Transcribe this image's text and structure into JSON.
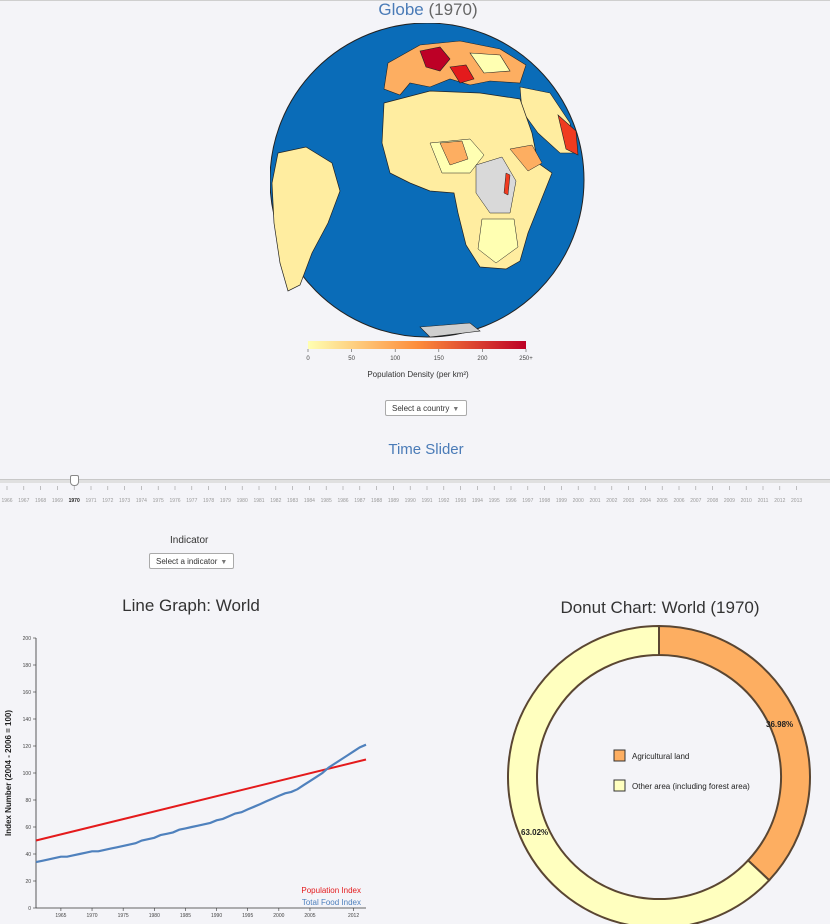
{
  "globe": {
    "title_main": "Globe",
    "title_year": "(1970)",
    "legend": {
      "ticks": [
        "0",
        "50",
        "100",
        "150",
        "200",
        "250+"
      ],
      "label": "Population Density (per km²)",
      "color_low": "#ffffb2",
      "color_mid": "#fd8d3c",
      "color_high": "#bd0026"
    },
    "ocean_color": "#0a6cb8",
    "country_select": "Select a country"
  },
  "slider": {
    "title": "Time Slider",
    "selected_year": "1970",
    "years": [
      "1966",
      "1967",
      "1968",
      "1969",
      "1970",
      "1971",
      "1972",
      "1973",
      "1974",
      "1975",
      "1976",
      "1977",
      "1978",
      "1979",
      "1980",
      "1981",
      "1982",
      "1983",
      "1984",
      "1985",
      "1986",
      "1987",
      "1988",
      "1989",
      "1990",
      "1991",
      "1992",
      "1993",
      "1994",
      "1995",
      "1996",
      "1997",
      "1998",
      "1999",
      "2000",
      "2001",
      "2002",
      "2003",
      "2004",
      "2005",
      "2006",
      "2007",
      "2008",
      "2009",
      "2010",
      "2011",
      "2012",
      "2013"
    ]
  },
  "indicator": {
    "label": "Indicator",
    "select": "Select a indicator"
  },
  "line_graph": {
    "title_main": "Line Graph:",
    "title_region": "World"
  },
  "donut": {
    "title_main": "Donut Chart:",
    "title_region": "World (1970)"
  },
  "chart_data": [
    {
      "type": "line",
      "title": "Line Graph: World",
      "ylabel": "Index Number (2004 - 2006 = 100)",
      "xlabel": "",
      "xlim": [
        1961,
        2014
      ],
      "ylim": [
        0,
        200
      ],
      "x_ticks": [
        "1965",
        "1970",
        "1975",
        "1980",
        "1985",
        "1990",
        "1995",
        "2000",
        "2005",
        "2012"
      ],
      "y_ticks": [
        "0",
        "20",
        "40",
        "60",
        "80",
        "100",
        "120",
        "140",
        "160",
        "180",
        "200"
      ],
      "series": [
        {
          "name": "Population Index",
          "color": "#e41a1c",
          "x": [
            1961,
            2014
          ],
          "y": [
            50,
            110
          ]
        },
        {
          "name": "Total Food Index",
          "color": "#4f81bd",
          "x": [
            1961,
            1962,
            1963,
            1964,
            1965,
            1966,
            1967,
            1968,
            1969,
            1970,
            1971,
            1972,
            1973,
            1974,
            1975,
            1976,
            1977,
            1978,
            1979,
            1980,
            1981,
            1982,
            1983,
            1984,
            1985,
            1986,
            1987,
            1988,
            1989,
            1990,
            1991,
            1992,
            1993,
            1994,
            1995,
            1996,
            1997,
            1998,
            1999,
            2000,
            2001,
            2002,
            2003,
            2004,
            2005,
            2006,
            2007,
            2008,
            2009,
            2010,
            2011,
            2012,
            2013,
            2014
          ],
          "y": [
            34,
            35,
            36,
            37,
            38,
            38,
            39,
            40,
            41,
            42,
            42,
            43,
            44,
            45,
            46,
            47,
            48,
            50,
            51,
            52,
            54,
            55,
            56,
            58,
            59,
            60,
            61,
            62,
            63,
            65,
            66,
            68,
            70,
            71,
            73,
            75,
            77,
            79,
            81,
            83,
            85,
            86,
            88,
            91,
            94,
            97,
            100,
            104,
            107,
            110,
            113,
            116,
            119,
            121
          ]
        }
      ]
    },
    {
      "type": "pie",
      "title": "Donut Chart: World (1970)",
      "slices": [
        {
          "label": "Agricultural land",
          "value": 36.98,
          "display": "36.98%",
          "color": "#fdae61"
        },
        {
          "label": "Other area (including forest area)",
          "value": 63.02,
          "display": "63.02%",
          "color": "#ffffbf"
        }
      ]
    }
  ]
}
